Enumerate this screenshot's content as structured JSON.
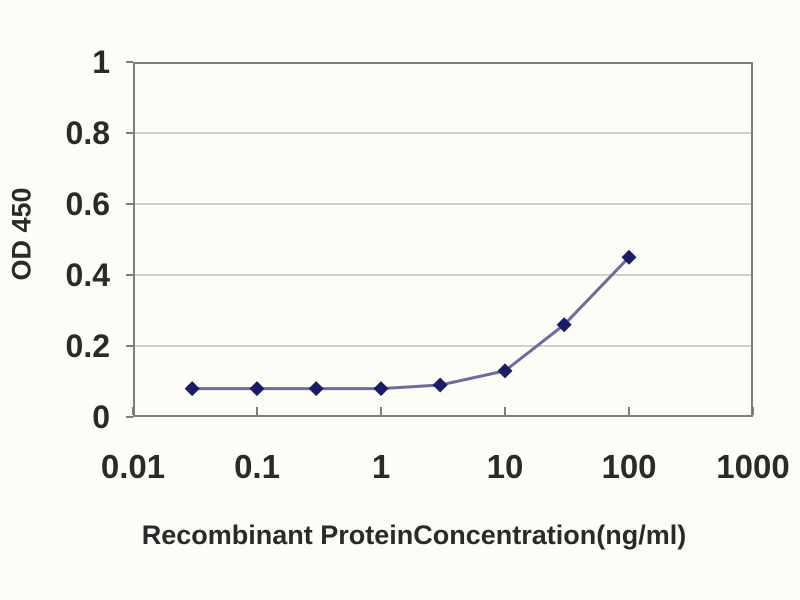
{
  "chart_data": {
    "type": "line",
    "title": "",
    "xlabel": "Recombinant ProteinConcentration(ng/ml)",
    "ylabel": "OD 450",
    "x_scale": "log",
    "xlim": [
      0.01,
      1000
    ],
    "ylim": [
      0,
      1
    ],
    "x_ticks": [
      0.01,
      0.1,
      1,
      10,
      100,
      1000
    ],
    "x_tick_labels": [
      "0.01",
      "0.1",
      "1",
      "10",
      "100",
      "1000"
    ],
    "y_ticks": [
      0,
      0.2,
      0.4,
      0.6,
      0.8,
      1
    ],
    "y_tick_labels": [
      "0",
      "0.2",
      "0.4",
      "0.6",
      "0.8",
      "1"
    ],
    "grid": "horizontal",
    "legend": null,
    "series": [
      {
        "name": "OD450",
        "x": [
          0.03,
          0.1,
          0.3,
          1,
          3,
          10,
          30,
          100
        ],
        "y": [
          0.08,
          0.08,
          0.08,
          0.08,
          0.09,
          0.13,
          0.26,
          0.45
        ],
        "marker": "diamond"
      }
    ],
    "colors": {
      "line": "#6b6b9e",
      "marker": "#1b1b66",
      "axis": "#7d7d7d",
      "grid": "#cfcfcf",
      "text": "#2a2a2a",
      "background": "#fdfdf8"
    }
  }
}
